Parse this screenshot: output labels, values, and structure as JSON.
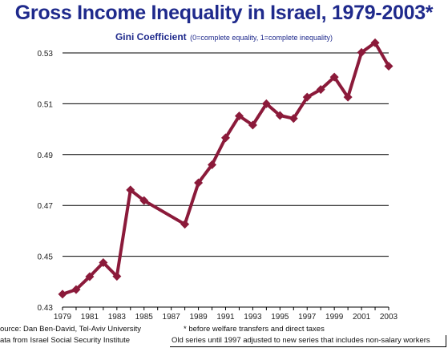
{
  "chart_data": {
    "type": "line",
    "title": "Gross Income Inequality in Israel, 1979-2003*",
    "subtitle": "Gini Coefficient",
    "subtitle_note": "(0=complete equality, 1=complete inequality)",
    "x_tick_labels": [
      "1979",
      "1981",
      "1983",
      "1985",
      "1987",
      "1989",
      "1991",
      "1993",
      "1995",
      "1997",
      "1999",
      "2001",
      "2003"
    ],
    "y_tick_labels": [
      "0.43",
      "0.45",
      "0.47",
      "0.49",
      "0.51",
      "0.53"
    ],
    "ylim": [
      0.43,
      0.53
    ],
    "xlim": [
      1979,
      2003
    ],
    "grid": true,
    "series": [
      {
        "color": "#8b1a3a",
        "points": [
          {
            "x": 1979,
            "y": 0.4351
          },
          {
            "x": 1980,
            "y": 0.4369
          },
          {
            "x": 1981,
            "y": 0.442
          },
          {
            "x": 1982,
            "y": 0.4475
          },
          {
            "x": 1983,
            "y": 0.4421
          },
          {
            "x": 1984,
            "y": 0.4761
          },
          {
            "x": 1985,
            "y": 0.4719
          },
          {
            "x": 1988,
            "y": 0.4626
          },
          {
            "x": 1989,
            "y": 0.4789
          },
          {
            "x": 1990,
            "y": 0.486
          },
          {
            "x": 1991,
            "y": 0.4966
          },
          {
            "x": 1992,
            "y": 0.5052
          },
          {
            "x": 1993,
            "y": 0.5016
          },
          {
            "x": 1994,
            "y": 0.51
          },
          {
            "x": 1995,
            "y": 0.5054
          },
          {
            "x": 1996,
            "y": 0.5042
          },
          {
            "x": 1997,
            "y": 0.5126
          },
          {
            "x": 1998,
            "y": 0.5156
          },
          {
            "x": 1999,
            "y": 0.5205
          },
          {
            "x": 2000,
            "y": 0.5126
          },
          {
            "x": 2001,
            "y": 0.5302
          },
          {
            "x": 2002,
            "y": 0.534
          },
          {
            "x": 2003,
            "y": 0.5248
          }
        ]
      }
    ]
  },
  "footer": {
    "source_line1": "ource: Dan Ben-David, Tel-Aviv University",
    "source_line2": "ata from  Israel Social Security Institute",
    "note_line1": "* before welfare transfers and direct taxes",
    "note_line2": "Old series until 1997 adjusted to new series that includes non-salary workers"
  }
}
